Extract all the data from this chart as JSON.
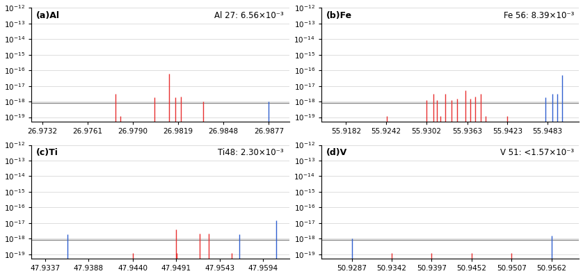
{
  "panels": [
    {
      "label": "(a)Al",
      "annotation": "Al 27: 6.56×10⁻³",
      "xlim": [
        26.9725,
        26.989
      ],
      "xticks": [
        26.9732,
        26.9761,
        26.979,
        26.9819,
        26.9848,
        26.9877
      ],
      "xtick_labels": [
        "26.9732",
        "26.9761",
        "26.9790",
        "26.9819",
        "26.9848",
        "26.9877"
      ],
      "hline": 8e-19,
      "red_lines": [
        [
          26.9779,
          3e-18
        ],
        [
          26.9782,
          1.2e-19
        ],
        [
          26.9804,
          1.8e-18
        ],
        [
          26.9813,
          6e-17
        ],
        [
          26.9817,
          1.8e-18
        ],
        [
          26.9821,
          2e-18
        ],
        [
          26.9835,
          1e-18
        ]
      ],
      "blue_lines": [
        [
          26.9877,
          1e-18
        ]
      ]
    },
    {
      "label": "(b)Fe",
      "annotation": "Fe 56: 8.39×10⁻³",
      "xlim": [
        55.9145,
        55.953
      ],
      "xticks": [
        55.9182,
        55.9242,
        55.9302,
        55.9363,
        55.9423,
        55.9483
      ],
      "xtick_labels": [
        "55.9182",
        "55.9242",
        "55.9302",
        "55.9363",
        "55.9423",
        "55.9483"
      ],
      "hline": 8e-19,
      "red_lines": [
        [
          55.9243,
          1.2e-19
        ],
        [
          55.9302,
          1.2e-18
        ],
        [
          55.9312,
          3e-18
        ],
        [
          55.9318,
          1.2e-18
        ],
        [
          55.9323,
          1.2e-19
        ],
        [
          55.933,
          3e-18
        ],
        [
          55.934,
          1.2e-18
        ],
        [
          55.9348,
          1.5e-18
        ],
        [
          55.936,
          5e-18
        ],
        [
          55.9368,
          1.5e-18
        ],
        [
          55.9375,
          2e-18
        ],
        [
          55.9383,
          3e-18
        ],
        [
          55.939,
          1.2e-19
        ],
        [
          55.9423,
          1.2e-19
        ]
      ],
      "blue_lines": [
        [
          55.948,
          1.8e-18
        ],
        [
          55.949,
          3e-18
        ],
        [
          55.9497,
          3e-18
        ],
        [
          55.9505,
          5e-17
        ]
      ]
    },
    {
      "label": "(c)Ti",
      "annotation": "Ti48: 2.30×10⁻³",
      "xlim": [
        47.932,
        47.9625
      ],
      "xticks": [
        47.9337,
        47.9388,
        47.944,
        47.9491,
        47.9543,
        47.9594
      ],
      "xtick_labels": [
        "47.9337",
        "47.9388",
        "47.9440",
        "47.9491",
        "47.9543",
        "47.9594"
      ],
      "hline": 8e-19,
      "red_lines": [
        [
          47.944,
          1.2e-19
        ],
        [
          47.9491,
          4e-18
        ],
        [
          47.9492,
          1.2e-19
        ],
        [
          47.9519,
          2e-18
        ],
        [
          47.953,
          2e-18
        ],
        [
          47.9557,
          1.2e-19
        ]
      ],
      "blue_lines": [
        [
          47.9363,
          1.8e-18
        ],
        [
          47.9566,
          1.8e-18
        ],
        [
          47.961,
          1.5e-17
        ]
      ]
    },
    {
      "label": "(d)V",
      "annotation": "V 51: <1.57×10⁻³",
      "xlim": [
        50.9245,
        50.96
      ],
      "xticks": [
        50.9287,
        50.9342,
        50.9397,
        50.9452,
        50.9507,
        50.9562
      ],
      "xtick_labels": [
        "50.9287",
        "50.9342",
        "50.9397",
        "50.9452",
        "50.9507",
        "50.9562"
      ],
      "hline": 8e-19,
      "red_lines": [
        [
          50.9342,
          1.2e-19
        ],
        [
          50.9397,
          1.2e-19
        ],
        [
          50.9452,
          1.2e-19
        ],
        [
          50.9507,
          1.2e-19
        ]
      ],
      "blue_lines": [
        [
          50.9287,
          1e-18
        ],
        [
          50.9562,
          1.5e-18
        ]
      ]
    }
  ],
  "red_color": "#e83030",
  "blue_color": "#3060d0",
  "hline_color": "#888888",
  "bg_color": "#ffffff",
  "grid_color": "#d0d0d0",
  "label_fontsize": 9,
  "tick_fontsize": 7.5,
  "annot_fontsize": 8.5,
  "line_width": 1.0,
  "ymin": 5e-20,
  "ymax": 1e-12
}
